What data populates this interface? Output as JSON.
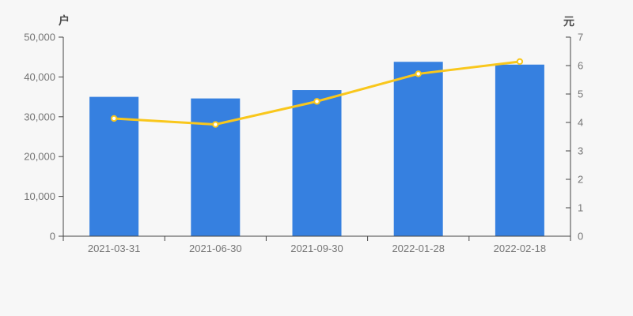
{
  "chart_data": {
    "type": "bar",
    "subtype": "bar+line dual axis",
    "categories": [
      "2021-03-31",
      "2021-06-30",
      "2021-09-30",
      "2022-01-28",
      "2022-02-18"
    ],
    "series": [
      {
        "type": "bar",
        "axis": "left",
        "values": [
          35000,
          34600,
          36700,
          43800,
          43100
        ]
      },
      {
        "type": "line",
        "axis": "right",
        "values": [
          4.14,
          3.93,
          4.74,
          5.71,
          6.14
        ]
      }
    ],
    "left_axis": {
      "title": "户",
      "min": 0,
      "max": 50000,
      "tick_step": 10000,
      "tick_labels": [
        "0",
        "10,000",
        "20,000",
        "30,000",
        "40,000",
        "50,000"
      ]
    },
    "right_axis": {
      "title": "元",
      "min": 0,
      "max": 7,
      "tick_step": 1,
      "tick_labels": [
        "0",
        "1",
        "2",
        "3",
        "4",
        "5",
        "6",
        "7"
      ]
    },
    "title": "",
    "xlabel": "",
    "ylabel_left": "户",
    "ylabel_right": "元",
    "legend": "none",
    "grid": "off",
    "colors": {
      "background": "#f7f7f7",
      "bar": "#3680e0",
      "line": "#f9c71c",
      "marker_fill": "#ffffff",
      "axis_line": "#444444",
      "tick_label": "#757575",
      "axis_title": "#4a4a4a"
    }
  }
}
